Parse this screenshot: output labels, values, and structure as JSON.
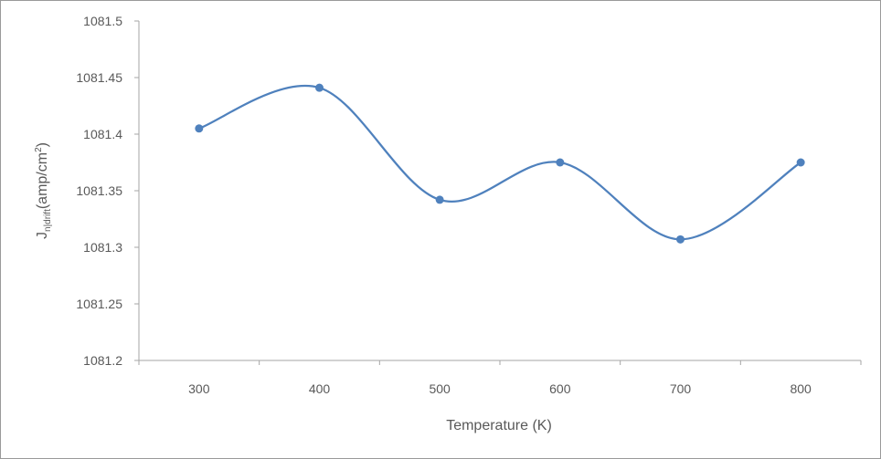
{
  "chart_data": {
    "type": "line",
    "title": "",
    "xlabel": "Temperature (K)",
    "ylabel": {
      "base": "J",
      "sub": "n|drift",
      "unit_open": "(amp/cm",
      "sup": "2",
      "unit_close": ")"
    },
    "x": [
      300,
      400,
      500,
      600,
      700,
      800
    ],
    "series": [
      {
        "values": [
          1081.405,
          1081.441,
          1081.342,
          1081.375,
          1081.307,
          1081.375
        ]
      }
    ],
    "ylim": [
      1081.2,
      1081.5
    ],
    "yticks": [
      "1081.2",
      "1081.25",
      "1081.3",
      "1081.35",
      "1081.4",
      "1081.45",
      "1081.5"
    ],
    "xticks": [
      "300",
      "400",
      "500",
      "600",
      "700",
      "800"
    ],
    "smooth": true,
    "grid": false,
    "legend": "none",
    "colors": {
      "line": "#4f81bd",
      "axis": "#a6a6a6",
      "text": "#595959"
    }
  }
}
